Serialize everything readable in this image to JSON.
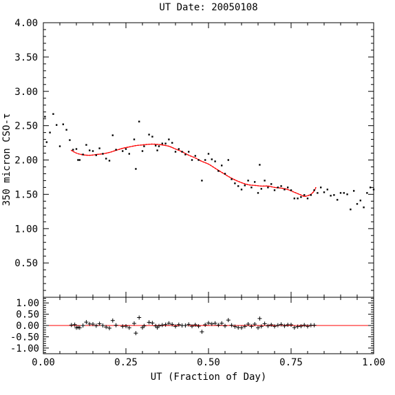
{
  "chart_data": [
    {
      "type": "scatter",
      "title": "UT Date: 20050108",
      "xlabel": "",
      "ylabel": "350 micron CSO-τ",
      "xlim": [
        0,
        1
      ],
      "ylim": [
        0,
        4
      ],
      "xticks": [
        0,
        0.25,
        0.5,
        0.75,
        1
      ],
      "yticks": [
        "0.50",
        "1.00",
        "1.50",
        "2.00",
        "2.50",
        "3.00",
        "3.50",
        "4.00"
      ],
      "grid": false,
      "legend": "none",
      "colors": {
        "points": "#000000",
        "fit": "#ff0000"
      },
      "series": [
        {
          "marker": "dot",
          "x": [
            0.005,
            0.01,
            0.02,
            0.03,
            0.04,
            0.05,
            0.06,
            0.07,
            0.08,
            0.09,
            0.1,
            0.105,
            0.11,
            0.12,
            0.13,
            0.14,
            0.15,
            0.16,
            0.17,
            0.18,
            0.19,
            0.2,
            0.21,
            0.22,
            0.24,
            0.25,
            0.26,
            0.275,
            0.28,
            0.29,
            0.3,
            0.305,
            0.32,
            0.33,
            0.34,
            0.345,
            0.35,
            0.36,
            0.37,
            0.38,
            0.39,
            0.4,
            0.41,
            0.42,
            0.43,
            0.44,
            0.45,
            0.46,
            0.47,
            0.48,
            0.49,
            0.5,
            0.51,
            0.52,
            0.53,
            0.54,
            0.55,
            0.56,
            0.57,
            0.58,
            0.59,
            0.6,
            0.61,
            0.62,
            0.63,
            0.64,
            0.65,
            0.655,
            0.66,
            0.67,
            0.68,
            0.69,
            0.7,
            0.71,
            0.72,
            0.73,
            0.74,
            0.75,
            0.76,
            0.77,
            0.78,
            0.79,
            0.8,
            0.81,
            0.82,
            0.83,
            0.84,
            0.85,
            0.86,
            0.87,
            0.88,
            0.89,
            0.9,
            0.91,
            0.92,
            0.93,
            0.94,
            0.95,
            0.96,
            0.97,
            0.98,
            0.99,
            1.0
          ],
          "y": [
            2.63,
            2.26,
            2.4,
            2.67,
            2.51,
            2.2,
            2.52,
            2.44,
            2.29,
            2.15,
            2.16,
            2.0,
            2.0,
            2.08,
            2.22,
            2.14,
            2.13,
            2.07,
            2.17,
            2.09,
            2.02,
            1.99,
            2.36,
            2.15,
            2.13,
            2.16,
            2.09,
            2.3,
            1.87,
            2.56,
            2.13,
            2.2,
            2.37,
            2.34,
            2.21,
            2.14,
            2.2,
            2.24,
            2.24,
            2.3,
            2.25,
            2.12,
            2.16,
            2.12,
            2.08,
            2.12,
            2.0,
            2.06,
            2.0,
            1.7,
            2.0,
            2.09,
            2.01,
            1.98,
            1.84,
            1.92,
            1.8,
            2.0,
            1.72,
            1.66,
            1.62,
            1.57,
            1.63,
            1.7,
            1.6,
            1.68,
            1.52,
            1.93,
            1.58,
            1.7,
            1.6,
            1.65,
            1.56,
            1.6,
            1.62,
            1.57,
            1.6,
            1.56,
            1.44,
            1.44,
            1.46,
            1.49,
            1.44,
            1.49,
            1.56,
            1.52,
            1.6,
            1.53,
            1.57,
            1.48,
            1.49,
            1.42,
            1.52,
            1.52,
            1.5,
            1.28,
            1.55,
            1.36,
            1.41,
            1.31,
            1.52,
            1.6,
            1.57
          ]
        },
        {
          "marker": "line",
          "x": [
            0.085,
            0.1,
            0.115,
            0.13,
            0.145,
            0.16,
            0.18,
            0.2,
            0.22,
            0.24,
            0.26,
            0.28,
            0.3,
            0.32,
            0.34,
            0.36,
            0.38,
            0.4,
            0.42,
            0.44,
            0.46,
            0.48,
            0.5,
            0.52,
            0.54,
            0.56,
            0.58,
            0.6,
            0.62,
            0.64,
            0.66,
            0.68,
            0.7,
            0.72,
            0.74,
            0.76,
            0.78,
            0.79,
            0.8,
            0.81,
            0.82,
            0.825
          ],
          "y": [
            2.14,
            2.1,
            2.08,
            2.07,
            2.07,
            2.08,
            2.09,
            2.11,
            2.14,
            2.17,
            2.19,
            2.21,
            2.22,
            2.23,
            2.23,
            2.22,
            2.2,
            2.16,
            2.12,
            2.07,
            2.03,
            1.98,
            1.94,
            1.88,
            1.82,
            1.76,
            1.71,
            1.67,
            1.64,
            1.63,
            1.62,
            1.62,
            1.6,
            1.59,
            1.57,
            1.53,
            1.49,
            1.47,
            1.48,
            1.5,
            1.55,
            1.6
          ]
        }
      ]
    },
    {
      "type": "scatter",
      "title": "",
      "xlabel": "UT (Fraction of Day)",
      "ylabel": "",
      "xlim": [
        0,
        1
      ],
      "ylim": [
        -1.25,
        1.25
      ],
      "xticks": [
        "0.00",
        "0.25",
        "0.50",
        "0.75",
        "1.00"
      ],
      "yticks": [
        "1.00",
        "0.50",
        "0.00",
        "-0.50",
        "-1.00"
      ],
      "grid": false,
      "legend": "none",
      "reference_line": 0,
      "colors": {
        "points": "#000000",
        "zero_line": "#ff0000"
      },
      "series": [
        {
          "marker": "plus",
          "x": [
            0.085,
            0.095,
            0.1,
            0.105,
            0.11,
            0.12,
            0.13,
            0.14,
            0.15,
            0.16,
            0.17,
            0.18,
            0.19,
            0.2,
            0.21,
            0.22,
            0.24,
            0.25,
            0.26,
            0.275,
            0.28,
            0.29,
            0.3,
            0.305,
            0.32,
            0.33,
            0.34,
            0.345,
            0.35,
            0.36,
            0.37,
            0.38,
            0.39,
            0.4,
            0.41,
            0.42,
            0.43,
            0.44,
            0.45,
            0.46,
            0.47,
            0.48,
            0.49,
            0.5,
            0.51,
            0.52,
            0.53,
            0.54,
            0.55,
            0.56,
            0.57,
            0.58,
            0.59,
            0.6,
            0.61,
            0.62,
            0.63,
            0.64,
            0.65,
            0.655,
            0.66,
            0.67,
            0.68,
            0.69,
            0.7,
            0.71,
            0.72,
            0.73,
            0.74,
            0.75,
            0.76,
            0.77,
            0.78,
            0.79,
            0.8,
            0.81,
            0.82
          ],
          "y": [
            0.02,
            0.04,
            -0.1,
            -0.08,
            -0.1,
            0.0,
            0.15,
            0.07,
            0.06,
            -0.01,
            0.08,
            0.0,
            -0.07,
            -0.12,
            0.22,
            0.01,
            -0.04,
            -0.03,
            -0.1,
            0.09,
            -0.34,
            0.35,
            -0.09,
            -0.02,
            0.14,
            0.11,
            -0.02,
            -0.09,
            -0.02,
            0.02,
            0.04,
            0.1,
            0.05,
            -0.04,
            0.04,
            0.0,
            0.0,
            0.05,
            -0.03,
            0.03,
            -0.03,
            -0.28,
            0.03,
            0.11,
            0.07,
            0.1,
            0.02,
            0.1,
            -0.02,
            0.24,
            0.01,
            -0.05,
            -0.09,
            -0.1,
            -0.04,
            0.06,
            -0.04,
            0.06,
            -0.1,
            0.31,
            -0.04,
            0.08,
            -0.02,
            0.03,
            -0.04,
            0.01,
            0.05,
            -0.02,
            0.03,
            0.03,
            -0.09,
            -0.05,
            -0.03,
            0.02,
            -0.04,
            0.01,
            0.01
          ]
        }
      ]
    }
  ]
}
